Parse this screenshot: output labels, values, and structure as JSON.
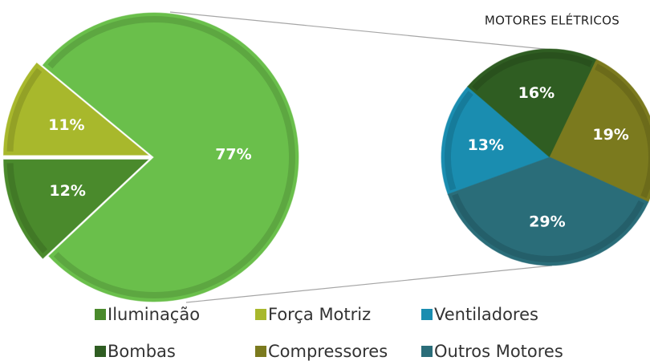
{
  "chart_data": [
    {
      "type": "pie",
      "categories": [
        "Iluminação",
        "Força Motriz",
        null
      ],
      "values": [
        12,
        11,
        77
      ],
      "value_labels": [
        "12%",
        "11%",
        "77%"
      ],
      "colors": [
        "#4a8a2c",
        "#a8b82c",
        "#6abf4b"
      ]
    },
    {
      "type": "pie",
      "title": "MOTORES ELÉTRICOS",
      "categories": [
        "Ventiladores",
        "Bombas",
        "Compressores",
        "Outros Motores"
      ],
      "values": [
        13,
        16,
        19,
        29
      ],
      "value_labels": [
        "13%",
        "16%",
        "19%",
        "29%"
      ],
      "colors": [
        "#1a8db0",
        "#2f5d22",
        "#7b7a1e",
        "#2a6d79"
      ]
    }
  ]
}
